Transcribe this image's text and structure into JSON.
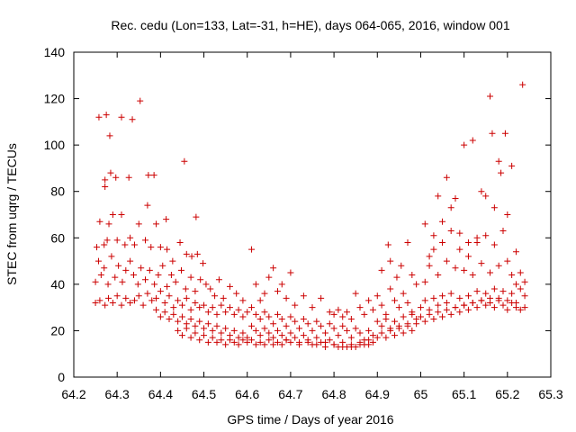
{
  "chart_data": {
    "type": "scatter",
    "title": "Rec. cedu (Lon=133, Lat=-31, h=HE), days 064-065, 2016, window 001",
    "xlabel": "GPS time / Days of year 2016",
    "ylabel": "STEC from uqrg / TECUs",
    "xlim": [
      64.2,
      65.3
    ],
    "ylim": [
      0,
      140
    ],
    "xticks": [
      "64.2",
      "64.3",
      "64.4",
      "64.5",
      "64.6",
      "64.7",
      "64.8",
      "64.9",
      "65",
      "65.1",
      "65.2",
      "65.3"
    ],
    "yticks": [
      "0",
      "20",
      "40",
      "60",
      "80",
      "100",
      "120",
      "140"
    ],
    "grid": false,
    "legend": "none",
    "marker": "+",
    "color": "#cc0000",
    "points": [
      [
        64.258,
        112
      ],
      [
        64.275,
        113
      ],
      [
        64.283,
        104
      ],
      [
        64.31,
        112
      ],
      [
        64.335,
        111
      ],
      [
        64.353,
        119
      ],
      [
        64.272,
        85
      ],
      [
        64.272,
        82
      ],
      [
        64.285,
        88
      ],
      [
        64.297,
        86
      ],
      [
        64.327,
        86
      ],
      [
        64.372,
        87
      ],
      [
        64.385,
        87
      ],
      [
        64.455,
        93
      ],
      [
        64.482,
        69
      ],
      [
        64.413,
        68
      ],
      [
        64.37,
        74
      ],
      [
        64.253,
        56
      ],
      [
        64.26,
        67
      ],
      [
        64.27,
        57
      ],
      [
        64.277,
        59
      ],
      [
        64.281,
        66
      ],
      [
        64.29,
        70
      ],
      [
        64.3,
        59
      ],
      [
        64.31,
        70
      ],
      [
        64.318,
        57
      ],
      [
        64.33,
        60
      ],
      [
        64.34,
        57
      ],
      [
        64.35,
        66
      ],
      [
        64.365,
        59
      ],
      [
        64.378,
        56
      ],
      [
        64.39,
        66
      ],
      [
        64.4,
        56
      ],
      [
        64.415,
        55
      ],
      [
        64.428,
        50
      ],
      [
        64.445,
        58
      ],
      [
        64.46,
        53
      ],
      [
        64.472,
        52
      ],
      [
        64.485,
        53
      ],
      [
        64.498,
        49
      ],
      [
        64.25,
        41
      ],
      [
        64.257,
        50
      ],
      [
        64.263,
        44
      ],
      [
        64.27,
        47
      ],
      [
        64.279,
        40
      ],
      [
        64.287,
        52
      ],
      [
        64.295,
        43
      ],
      [
        64.303,
        48
      ],
      [
        64.312,
        41
      ],
      [
        64.32,
        46
      ],
      [
        64.33,
        50
      ],
      [
        64.338,
        44
      ],
      [
        64.348,
        40
      ],
      [
        64.355,
        47
      ],
      [
        64.365,
        42
      ],
      [
        64.375,
        46
      ],
      [
        64.386,
        40
      ],
      [
        64.395,
        44
      ],
      [
        64.405,
        48
      ],
      [
        64.415,
        39
      ],
      [
        64.425,
        44
      ],
      [
        64.435,
        41
      ],
      [
        64.448,
        46
      ],
      [
        64.458,
        38
      ],
      [
        64.47,
        43
      ],
      [
        64.48,
        37
      ],
      [
        64.492,
        42
      ],
      [
        64.505,
        40
      ],
      [
        64.515,
        38
      ],
      [
        64.525,
        35
      ],
      [
        64.535,
        42
      ],
      [
        64.545,
        34
      ],
      [
        64.56,
        39
      ],
      [
        64.575,
        36
      ],
      [
        64.59,
        33
      ],
      [
        64.25,
        32
      ],
      [
        64.26,
        33
      ],
      [
        64.272,
        31
      ],
      [
        64.28,
        34
      ],
      [
        64.29,
        32
      ],
      [
        64.3,
        35
      ],
      [
        64.31,
        31
      ],
      [
        64.32,
        34
      ],
      [
        64.33,
        32
      ],
      [
        64.34,
        33
      ],
      [
        64.35,
        35
      ],
      [
        64.36,
        31
      ],
      [
        64.37,
        36
      ],
      [
        64.38,
        33
      ],
      [
        64.39,
        34
      ],
      [
        64.4,
        37
      ],
      [
        64.41,
        32
      ],
      [
        64.42,
        35
      ],
      [
        64.43,
        30
      ],
      [
        64.44,
        33
      ],
      [
        64.45,
        31
      ],
      [
        64.46,
        34
      ],
      [
        64.47,
        29
      ],
      [
        64.48,
        32
      ],
      [
        64.49,
        30
      ],
      [
        64.5,
        31
      ],
      [
        64.51,
        28
      ],
      [
        64.52,
        30
      ],
      [
        64.53,
        27
      ],
      [
        64.54,
        31
      ],
      [
        64.55,
        28
      ],
      [
        64.56,
        30
      ],
      [
        64.57,
        27
      ],
      [
        64.58,
        29
      ],
      [
        64.59,
        26
      ],
      [
        64.6,
        28
      ],
      [
        64.39,
        29
      ],
      [
        64.4,
        26
      ],
      [
        64.41,
        28
      ],
      [
        64.42,
        25
      ],
      [
        64.43,
        27
      ],
      [
        64.44,
        24
      ],
      [
        64.45,
        26
      ],
      [
        64.46,
        23
      ],
      [
        64.47,
        25
      ],
      [
        64.48,
        22
      ],
      [
        64.49,
        24
      ],
      [
        64.5,
        21
      ],
      [
        64.51,
        23
      ],
      [
        64.52,
        20
      ],
      [
        64.53,
        22
      ],
      [
        64.54,
        19
      ],
      [
        64.55,
        21
      ],
      [
        64.56,
        18
      ],
      [
        64.57,
        20
      ],
      [
        64.58,
        17
      ],
      [
        64.59,
        19
      ],
      [
        64.6,
        17
      ],
      [
        64.44,
        20
      ],
      [
        64.45,
        18
      ],
      [
        64.46,
        21
      ],
      [
        64.47,
        17
      ],
      [
        64.48,
        19
      ],
      [
        64.49,
        16
      ],
      [
        64.5,
        18
      ],
      [
        64.51,
        15
      ],
      [
        64.52,
        17
      ],
      [
        64.53,
        15
      ],
      [
        64.54,
        16
      ],
      [
        64.55,
        14
      ],
      [
        64.56,
        16
      ],
      [
        64.57,
        15
      ],
      [
        64.58,
        14
      ],
      [
        64.59,
        16
      ],
      [
        64.6,
        15
      ],
      [
        64.61,
        55
      ],
      [
        64.62,
        40
      ],
      [
        64.63,
        33
      ],
      [
        64.64,
        36
      ],
      [
        64.65,
        43
      ],
      [
        64.66,
        47
      ],
      [
        64.67,
        37
      ],
      [
        64.68,
        40
      ],
      [
        64.69,
        34
      ],
      [
        64.7,
        45
      ],
      [
        64.71,
        31
      ],
      [
        64.73,
        35
      ],
      [
        64.75,
        30
      ],
      [
        64.77,
        34
      ],
      [
        64.79,
        28
      ],
      [
        64.61,
        30
      ],
      [
        64.62,
        27
      ],
      [
        64.63,
        25
      ],
      [
        64.64,
        28
      ],
      [
        64.65,
        26
      ],
      [
        64.66,
        23
      ],
      [
        64.67,
        27
      ],
      [
        64.68,
        25
      ],
      [
        64.69,
        22
      ],
      [
        64.7,
        26
      ],
      [
        64.71,
        24
      ],
      [
        64.72,
        21
      ],
      [
        64.73,
        25
      ],
      [
        64.74,
        23
      ],
      [
        64.75,
        20
      ],
      [
        64.76,
        24
      ],
      [
        64.77,
        22
      ],
      [
        64.78,
        19
      ],
      [
        64.79,
        23
      ],
      [
        64.8,
        21
      ],
      [
        64.81,
        18
      ],
      [
        64.82,
        22
      ],
      [
        64.83,
        20
      ],
      [
        64.84,
        17
      ],
      [
        64.85,
        21
      ],
      [
        64.86,
        19
      ],
      [
        64.87,
        16
      ],
      [
        64.88,
        20
      ],
      [
        64.89,
        18
      ],
      [
        64.61,
        22
      ],
      [
        64.62,
        20
      ],
      [
        64.63,
        18
      ],
      [
        64.64,
        21
      ],
      [
        64.65,
        19
      ],
      [
        64.66,
        17
      ],
      [
        64.67,
        20
      ],
      [
        64.68,
        18
      ],
      [
        64.69,
        16
      ],
      [
        64.7,
        19
      ],
      [
        64.71,
        17
      ],
      [
        64.72,
        15
      ],
      [
        64.73,
        18
      ],
      [
        64.74,
        16
      ],
      [
        64.75,
        14
      ],
      [
        64.76,
        17
      ],
      [
        64.77,
        15
      ],
      [
        64.78,
        13
      ],
      [
        64.79,
        16
      ],
      [
        64.8,
        14
      ],
      [
        64.81,
        13
      ],
      [
        64.82,
        15
      ],
      [
        64.83,
        13
      ],
      [
        64.84,
        14
      ],
      [
        64.85,
        13
      ],
      [
        64.86,
        15
      ],
      [
        64.87,
        14
      ],
      [
        64.88,
        16
      ],
      [
        64.89,
        15
      ],
      [
        64.9,
        17
      ],
      [
        64.61,
        16
      ],
      [
        64.62,
        14
      ],
      [
        64.63,
        15
      ],
      [
        64.64,
        14
      ],
      [
        64.65,
        16
      ],
      [
        64.66,
        14
      ],
      [
        64.67,
        15
      ],
      [
        64.68,
        14
      ],
      [
        64.69,
        16
      ],
      [
        64.7,
        15
      ],
      [
        64.72,
        14
      ],
      [
        64.74,
        15
      ],
      [
        64.76,
        14
      ],
      [
        64.78,
        15
      ],
      [
        64.8,
        14
      ],
      [
        64.82,
        13
      ],
      [
        64.84,
        13
      ],
      [
        64.86,
        14
      ],
      [
        64.88,
        14
      ],
      [
        64.8,
        27
      ],
      [
        64.81,
        29
      ],
      [
        64.82,
        26
      ],
      [
        64.83,
        28
      ],
      [
        64.84,
        25
      ],
      [
        64.85,
        36
      ],
      [
        64.86,
        30
      ],
      [
        64.87,
        27
      ],
      [
        64.88,
        33
      ],
      [
        64.89,
        29
      ],
      [
        64.9,
        35
      ],
      [
        64.91,
        31
      ],
      [
        64.92,
        27
      ],
      [
        64.93,
        38
      ],
      [
        64.94,
        33
      ],
      [
        64.95,
        30
      ],
      [
        64.96,
        36
      ],
      [
        64.97,
        32
      ],
      [
        64.98,
        28
      ],
      [
        64.9,
        24
      ],
      [
        64.91,
        22
      ],
      [
        64.92,
        25
      ],
      [
        64.93,
        21
      ],
      [
        64.94,
        24
      ],
      [
        64.95,
        22
      ],
      [
        64.96,
        26
      ],
      [
        64.97,
        23
      ],
      [
        64.98,
        27
      ],
      [
        64.99,
        25
      ],
      [
        64.91,
        19
      ],
      [
        64.92,
        17
      ],
      [
        64.93,
        20
      ],
      [
        64.94,
        18
      ],
      [
        64.95,
        21
      ],
      [
        64.96,
        19
      ],
      [
        64.97,
        22
      ],
      [
        64.98,
        20
      ],
      [
        64.99,
        23
      ],
      [
        64.91,
        46
      ],
      [
        64.925,
        57
      ],
      [
        64.93,
        50
      ],
      [
        64.945,
        43
      ],
      [
        64.955,
        48
      ],
      [
        64.97,
        58
      ],
      [
        64.98,
        44
      ],
      [
        64.99,
        40
      ],
      [
        65.01,
        66
      ],
      [
        65.02,
        52
      ],
      [
        65.03,
        61
      ],
      [
        65.04,
        78
      ],
      [
        65.05,
        67
      ],
      [
        65.06,
        86
      ],
      [
        65.07,
        73
      ],
      [
        65.08,
        77
      ],
      [
        65.09,
        62
      ],
      [
        65.1,
        100
      ],
      [
        65.11,
        58
      ],
      [
        65.12,
        102
      ],
      [
        65.13,
        60
      ],
      [
        65.14,
        80
      ],
      [
        65.15,
        78
      ],
      [
        65.16,
        121
      ],
      [
        65.165,
        105
      ],
      [
        65.17,
        73
      ],
      [
        65.18,
        93
      ],
      [
        65.185,
        88
      ],
      [
        65.195,
        105
      ],
      [
        65.2,
        70
      ],
      [
        65.21,
        91
      ],
      [
        65.22,
        54
      ],
      [
        65.235,
        126
      ],
      [
        65.01,
        41
      ],
      [
        65.02,
        48
      ],
      [
        65.03,
        55
      ],
      [
        65.04,
        44
      ],
      [
        65.05,
        58
      ],
      [
        65.06,
        50
      ],
      [
        65.07,
        63
      ],
      [
        65.08,
        47
      ],
      [
        65.09,
        55
      ],
      [
        65.1,
        46
      ],
      [
        65.11,
        52
      ],
      [
        65.12,
        44
      ],
      [
        65.13,
        58
      ],
      [
        65.14,
        49
      ],
      [
        65.15,
        61
      ],
      [
        65.16,
        45
      ],
      [
        65.17,
        57
      ],
      [
        65.18,
        48
      ],
      [
        65.19,
        63
      ],
      [
        65.2,
        50
      ],
      [
        65.21,
        44
      ],
      [
        65.22,
        40
      ],
      [
        65.23,
        45
      ],
      [
        65.24,
        41
      ],
      [
        65.0,
        30
      ],
      [
        65.01,
        33
      ],
      [
        65.02,
        29
      ],
      [
        65.03,
        34
      ],
      [
        65.04,
        31
      ],
      [
        65.05,
        35
      ],
      [
        65.06,
        32
      ],
      [
        65.07,
        36
      ],
      [
        65.08,
        30
      ],
      [
        65.09,
        34
      ],
      [
        65.1,
        31
      ],
      [
        65.11,
        35
      ],
      [
        65.12,
        32
      ],
      [
        65.13,
        37
      ],
      [
        65.14,
        33
      ],
      [
        65.15,
        36
      ],
      [
        65.16,
        32
      ],
      [
        65.17,
        38
      ],
      [
        65.18,
        34
      ],
      [
        65.19,
        37
      ],
      [
        65.2,
        33
      ],
      [
        65.21,
        36
      ],
      [
        65.22,
        32
      ],
      [
        65.23,
        38
      ],
      [
        65.24,
        35
      ],
      [
        65.0,
        26
      ],
      [
        65.01,
        24
      ],
      [
        65.02,
        27
      ],
      [
        65.03,
        25
      ],
      [
        65.04,
        28
      ],
      [
        65.05,
        26
      ],
      [
        65.06,
        29
      ],
      [
        65.07,
        27
      ],
      [
        65.08,
        30
      ],
      [
        65.09,
        28
      ],
      [
        65.1,
        31
      ],
      [
        65.11,
        29
      ],
      [
        65.12,
        32
      ],
      [
        65.13,
        30
      ],
      [
        65.14,
        33
      ],
      [
        65.15,
        31
      ],
      [
        65.16,
        34
      ],
      [
        65.17,
        30
      ],
      [
        65.18,
        33
      ],
      [
        65.19,
        31
      ],
      [
        65.2,
        29
      ],
      [
        65.21,
        32
      ],
      [
        65.22,
        30
      ],
      [
        65.23,
        29
      ],
      [
        65.24,
        30
      ]
    ]
  }
}
